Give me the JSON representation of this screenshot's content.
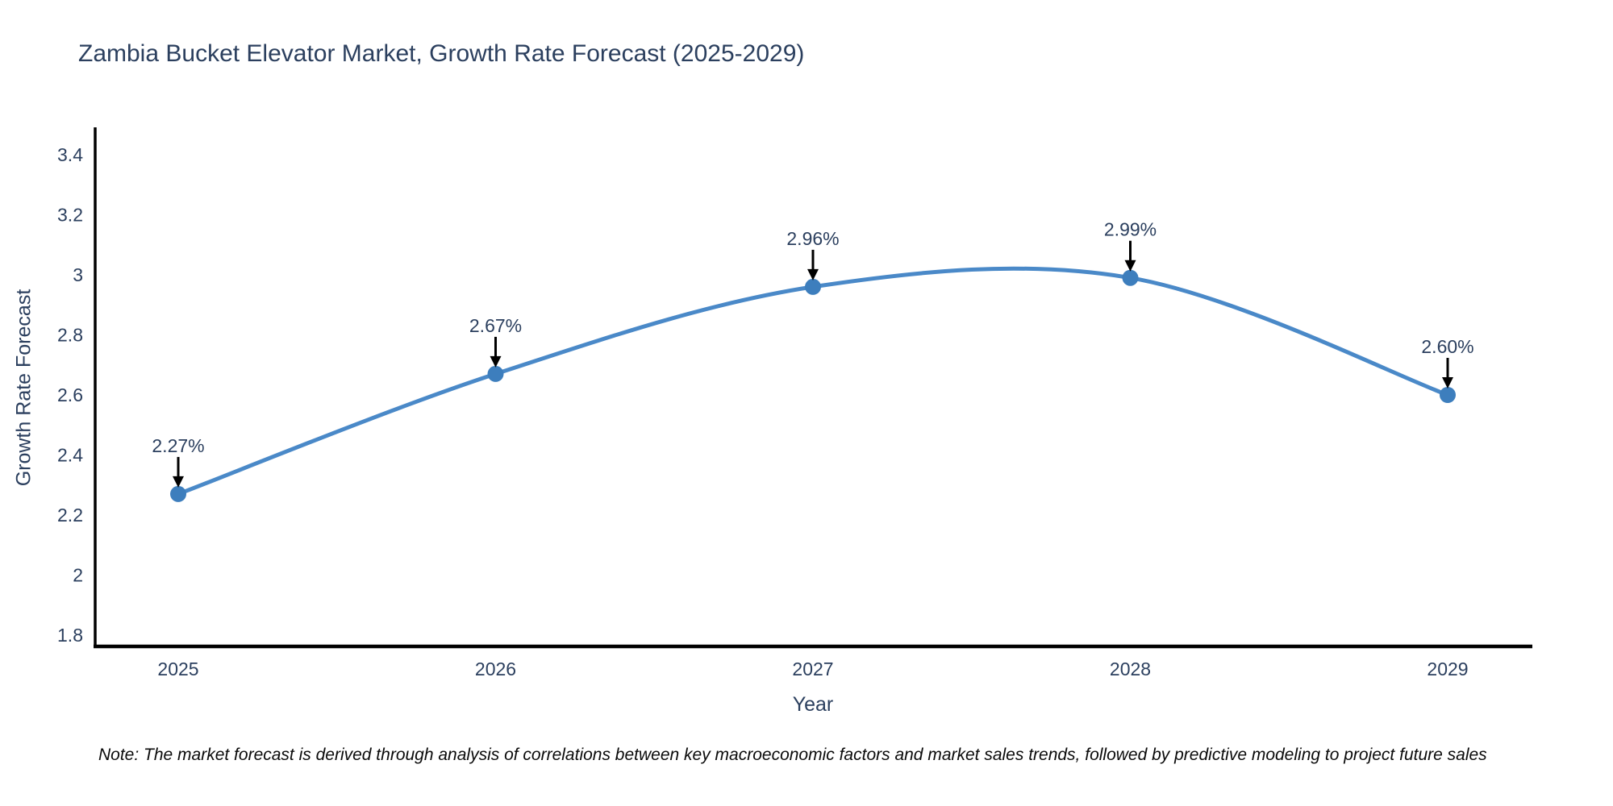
{
  "title": "Zambia Bucket Elevator Market, Growth Rate Forecast (2025-2029)",
  "note": "Note: The market forecast is derived through analysis of correlations between key macroeconomic factors and market sales trends, followed by predictive modeling to project future sales",
  "chart_data": {
    "type": "line",
    "title": "Zambia Bucket Elevator Market, Growth Rate Forecast (2025-2029)",
    "xlabel": "Year",
    "ylabel": "Growth Rate Forecast",
    "x": [
      2025,
      2026,
      2027,
      2028,
      2029
    ],
    "values": [
      2.27,
      2.67,
      2.96,
      2.99,
      2.6
    ],
    "point_labels": [
      "2.27%",
      "2.67%",
      "2.96%",
      "2.99%",
      "2.60%"
    ],
    "x_ticks": [
      "2025",
      "2026",
      "2027",
      "2028",
      "2029"
    ],
    "y_ticks": [
      1.8,
      2,
      2.2,
      2.4,
      2.6,
      2.8,
      3,
      3.2,
      3.4
    ],
    "ylim": [
      1.76,
      3.49
    ],
    "line_style": "spline-smoothed",
    "markers": "filled-circles with black down-arrow annotations",
    "grid": false,
    "legend_position": "none",
    "colors": {
      "line": "#4a89c8",
      "marker": "#3d7ebd",
      "arrow": "#000000",
      "axis": "#000000",
      "text": "#2b3f5e",
      "note_text": "#0a0a0a",
      "background": "#ffffff"
    }
  }
}
